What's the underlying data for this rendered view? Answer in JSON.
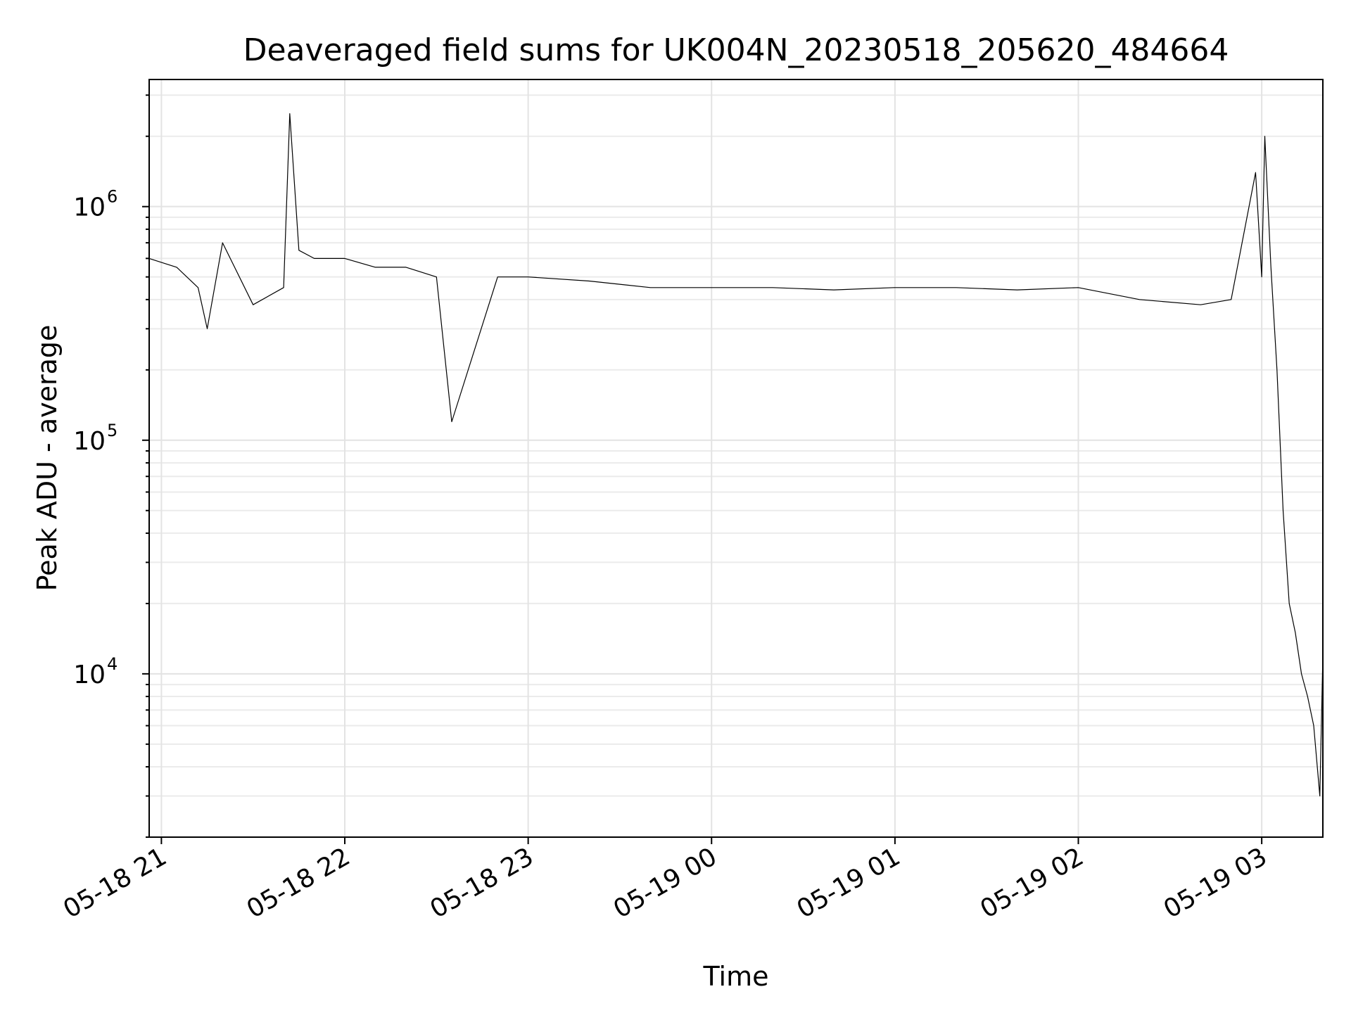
{
  "chart_data": {
    "type": "line",
    "title": "Deaveraged field sums for UK004N_20230518_205620_484664",
    "xlabel": "Time",
    "ylabel": "Peak ADU - average",
    "yscale": "log",
    "ylim": [
      2000,
      3500000
    ],
    "xlim": [
      "2023-05-18 20:56",
      "2023-05-19 03:20"
    ],
    "grid": true,
    "x_ticks": [
      {
        "value": "2023-05-18 21:00",
        "label": "05-18 21"
      },
      {
        "value": "2023-05-18 22:00",
        "label": "05-18 22"
      },
      {
        "value": "2023-05-18 23:00",
        "label": "05-18 23"
      },
      {
        "value": "2023-05-19 00:00",
        "label": "05-19 00"
      },
      {
        "value": "2023-05-19 01:00",
        "label": "05-19 01"
      },
      {
        "value": "2023-05-19 02:00",
        "label": "05-19 02"
      },
      {
        "value": "2023-05-19 03:00",
        "label": "05-19 03"
      }
    ],
    "y_ticks": [
      {
        "value": 10000,
        "base": "10",
        "exp": "4"
      },
      {
        "value": 100000,
        "base": "10",
        "exp": "5"
      },
      {
        "value": 1000000,
        "base": "10",
        "exp": "6"
      }
    ],
    "series": [
      {
        "color": "#000000",
        "x": [
          "2023-05-18 20:56",
          "2023-05-18 21:05",
          "2023-05-18 21:12",
          "2023-05-18 21:15",
          "2023-05-18 21:20",
          "2023-05-18 21:30",
          "2023-05-18 21:40",
          "2023-05-18 21:42",
          "2023-05-18 21:45",
          "2023-05-18 21:50",
          "2023-05-18 22:00",
          "2023-05-18 22:10",
          "2023-05-18 22:20",
          "2023-05-18 22:30",
          "2023-05-18 22:35",
          "2023-05-18 22:50",
          "2023-05-18 23:00",
          "2023-05-18 23:20",
          "2023-05-18 23:40",
          "2023-05-19 00:00",
          "2023-05-19 00:20",
          "2023-05-19 00:40",
          "2023-05-19 01:00",
          "2023-05-19 01:20",
          "2023-05-19 01:40",
          "2023-05-19 02:00",
          "2023-05-19 02:20",
          "2023-05-19 02:40",
          "2023-05-19 02:50",
          "2023-05-19 02:58",
          "2023-05-19 03:00",
          "2023-05-19 03:01",
          "2023-05-19 03:03",
          "2023-05-19 03:05",
          "2023-05-19 03:07",
          "2023-05-19 03:09",
          "2023-05-19 03:11",
          "2023-05-19 03:13",
          "2023-05-19 03:15",
          "2023-05-19 03:17",
          "2023-05-19 03:19",
          "2023-05-19 03:20"
        ],
        "values": [
          600000,
          550000,
          450000,
          300000,
          700000,
          380000,
          450000,
          2500000,
          650000,
          600000,
          600000,
          550000,
          550000,
          500000,
          120000,
          500000,
          500000,
          480000,
          450000,
          450000,
          450000,
          440000,
          450000,
          450000,
          440000,
          450000,
          400000,
          380000,
          400000,
          1400000,
          500000,
          2000000,
          550000,
          200000,
          50000,
          20000,
          15000,
          10000,
          8000,
          6000,
          3000,
          12000
        ]
      }
    ]
  }
}
